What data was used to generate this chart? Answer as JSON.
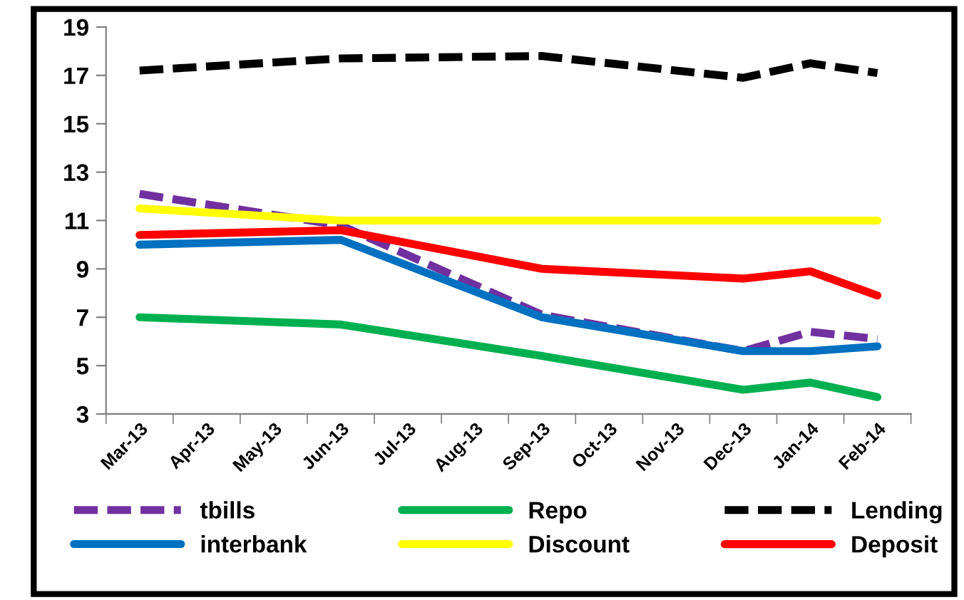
{
  "chart_data": {
    "type": "line",
    "categories": [
      "Mar-13",
      "Apr-13",
      "May-13",
      "Jun-13",
      "Jul-13",
      "Aug-13",
      "Sep-13",
      "Oct-13",
      "Nov-13",
      "Dec-13",
      "Jan-14",
      "Feb-14"
    ],
    "ylim": [
      3,
      19
    ],
    "yticks": [
      3,
      5,
      7,
      9,
      11,
      13,
      15,
      17,
      19
    ],
    "grid": false,
    "legend": "bottom",
    "marker": "none",
    "series": [
      {
        "name": "tbills",
        "color": "#7030a0",
        "line_style": "dashed",
        "values": [
          12.1,
          null,
          null,
          10.8,
          null,
          null,
          7.1,
          null,
          null,
          5.6,
          6.4,
          6.1
        ]
      },
      {
        "name": "interbank",
        "color": "#0070c0",
        "line_style": "solid",
        "values": [
          10.0,
          null,
          null,
          10.2,
          null,
          null,
          7.0,
          null,
          null,
          5.6,
          5.6,
          5.8
        ]
      },
      {
        "name": "Repo",
        "color": "#00b050",
        "line_style": "solid",
        "values": [
          7.0,
          null,
          null,
          6.7,
          null,
          null,
          5.4,
          null,
          null,
          4.0,
          4.3,
          3.7
        ]
      },
      {
        "name": "Discount",
        "color": "#ffff00",
        "line_style": "solid",
        "values": [
          11.5,
          null,
          null,
          11.0,
          null,
          null,
          11.0,
          null,
          null,
          11.0,
          11.0,
          11.0
        ]
      },
      {
        "name": "Lending",
        "color": "#000000",
        "line_style": "dashed",
        "values": [
          17.2,
          null,
          null,
          17.7,
          null,
          null,
          17.8,
          null,
          null,
          16.9,
          17.5,
          17.1
        ]
      },
      {
        "name": "Deposit",
        "color": "#ff0000",
        "line_style": "solid",
        "values": [
          10.4,
          null,
          null,
          10.6,
          null,
          null,
          9.0,
          null,
          null,
          8.6,
          8.9,
          7.9
        ]
      }
    ]
  }
}
